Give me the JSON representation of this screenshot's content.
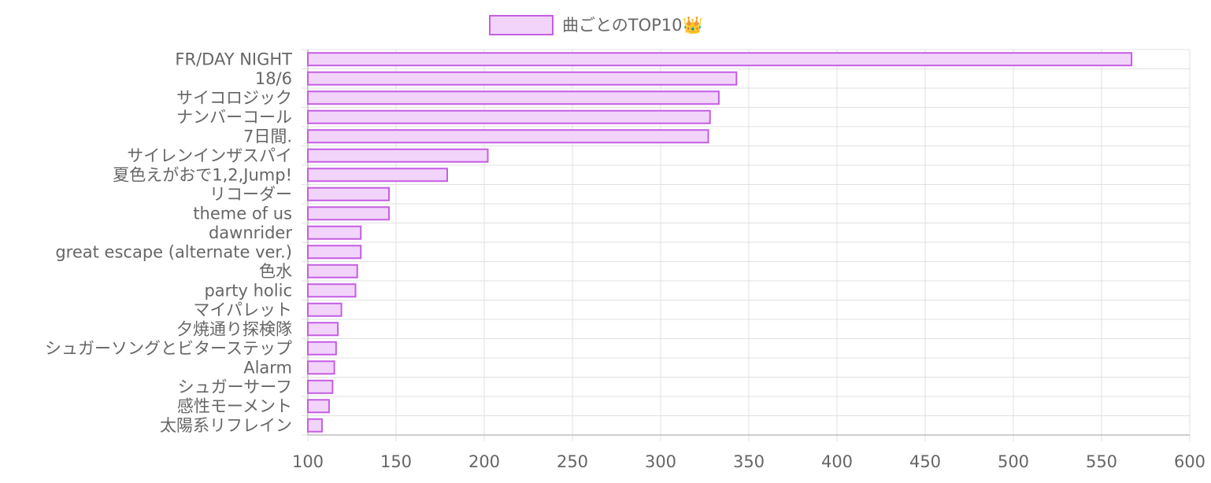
{
  "chart_data": {
    "type": "bar",
    "orientation": "horizontal",
    "legend": {
      "label": "曲ごとのTOP10👑",
      "position": "top"
    },
    "series": [
      {
        "name": "曲ごとのTOP10👑"
      }
    ],
    "categories": [
      "FR/DAY NIGHT",
      "18/6",
      "サイコロジック",
      "ナンバーコール",
      "7日間.",
      "サイレンインザスパイ",
      "夏色えがおで1,2,Jump!",
      "リコーダー",
      "theme of us",
      "dawnrider",
      "great escape (alternate ver.)",
      "色水",
      "party holic",
      "マイパレット",
      "夕焼通り探検隊",
      "シュガーソングとビターステップ",
      "Alarm",
      "シュガーサーフ",
      "感性モーメント",
      "太陽系リフレイン"
    ],
    "values": [
      567,
      343,
      333,
      328,
      327,
      202,
      179,
      146,
      146,
      130,
      130,
      128,
      127,
      119,
      117,
      116,
      115,
      114,
      112,
      108
    ],
    "xlim": [
      100,
      600
    ],
    "xticks": [
      "100",
      "150",
      "200",
      "250",
      "300",
      "350",
      "400",
      "450",
      "500",
      "550",
      "600"
    ],
    "grid": true,
    "colors": {
      "bar_fill": "#f2d4fb",
      "bar_border": "#c45ee3",
      "grid": "#e1e1e1",
      "axis": "#bdbdbd",
      "text": "#666666"
    }
  }
}
